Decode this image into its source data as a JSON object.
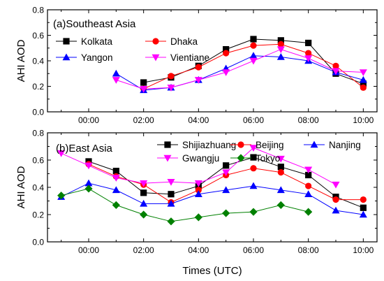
{
  "chart_data": [
    {
      "type": "line",
      "title": "(a)Southeast Asia",
      "ylabel": "AHI AOD",
      "xlabel": "",
      "ylim": [
        0.0,
        0.8
      ],
      "yticks": [
        "0.0",
        "0.2",
        "0.4",
        "0.6",
        "0.8"
      ],
      "xlim": [
        -1.5,
        10.5
      ],
      "xtick_values": [
        0,
        2,
        4,
        6,
        8,
        10
      ],
      "xtick_labels": [
        "00:00",
        "02:00",
        "04:00",
        "06:00",
        "08:00",
        "10:00"
      ],
      "legend_columns": 2,
      "legend_placement": "top-left",
      "series": [
        {
          "name": "Kolkata",
          "color": "#000000",
          "marker": "square",
          "x": [
            2,
            3,
            4,
            5,
            6,
            7,
            8,
            9,
            10
          ],
          "y": [
            0.23,
            0.27,
            0.36,
            0.49,
            0.57,
            0.56,
            0.54,
            0.3,
            0.22
          ]
        },
        {
          "name": "Dhaka",
          "color": "#ff0000",
          "marker": "circle",
          "x": [
            2,
            3,
            4,
            5,
            6,
            7,
            8,
            9,
            10
          ],
          "y": [
            0.18,
            0.28,
            0.35,
            0.46,
            0.52,
            0.53,
            0.46,
            0.36,
            0.19
          ]
        },
        {
          "name": "Yangon",
          "color": "#0000ff",
          "marker": "triangle-up",
          "x": [
            1,
            2,
            3,
            4,
            5,
            6,
            7,
            8,
            9,
            10
          ],
          "y": [
            0.3,
            0.17,
            0.19,
            0.25,
            0.34,
            0.44,
            0.43,
            0.4,
            0.31,
            0.25
          ]
        },
        {
          "name": "Vientiane",
          "color": "#ff00ff",
          "marker": "triangle-down",
          "x": [
            1,
            2,
            3,
            4,
            5,
            6,
            7,
            8,
            9,
            10
          ],
          "y": [
            0.25,
            0.18,
            0.19,
            0.25,
            0.31,
            0.4,
            0.49,
            0.42,
            0.32,
            0.31
          ]
        }
      ]
    },
    {
      "type": "line",
      "title": "(b)East Asia",
      "ylabel": "AHI AOD",
      "xlabel": "Times (UTC)",
      "ylim": [
        0.0,
        0.8
      ],
      "yticks": [
        "0.0",
        "0.2",
        "0.4",
        "0.6",
        "0.8"
      ],
      "xlim": [
        -1.5,
        10.5
      ],
      "xtick_values": [
        0,
        2,
        4,
        6,
        8,
        10
      ],
      "xtick_labels": [
        "00:00",
        "02:00",
        "04:00",
        "06:00",
        "08:00",
        "10:00"
      ],
      "legend_columns": 3,
      "legend_placement": "top-right",
      "series": [
        {
          "name": "Shijiazhuang",
          "color": "#000000",
          "marker": "square",
          "x": [
            0,
            1,
            2,
            3,
            4,
            5,
            6,
            7,
            8,
            9,
            10
          ],
          "y": [
            0.59,
            0.52,
            0.36,
            0.35,
            0.41,
            0.56,
            0.62,
            0.55,
            0.49,
            0.33,
            0.25
          ]
        },
        {
          "name": "Beijing",
          "color": "#ff0000",
          "marker": "circle",
          "x": [
            0,
            1,
            2,
            3,
            4,
            5,
            6,
            7,
            8,
            9,
            10
          ],
          "y": [
            0.57,
            0.48,
            0.42,
            0.29,
            0.38,
            0.49,
            0.54,
            0.51,
            0.41,
            0.31,
            0.31
          ]
        },
        {
          "name": "Nanjing",
          "color": "#0000ff",
          "marker": "triangle-up",
          "x": [
            -1,
            0,
            1,
            2,
            3,
            4,
            5,
            6,
            7,
            8,
            9,
            10
          ],
          "y": [
            0.33,
            0.43,
            0.38,
            0.28,
            0.28,
            0.35,
            0.38,
            0.41,
            0.38,
            0.35,
            0.23,
            0.2
          ]
        },
        {
          "name": "Gwangju",
          "color": "#ff00ff",
          "marker": "triangle-down",
          "x": [
            -1,
            0,
            1,
            2,
            3,
            4,
            5,
            6,
            7,
            8,
            9
          ],
          "y": [
            0.65,
            0.56,
            0.47,
            0.43,
            0.44,
            0.43,
            0.51,
            0.69,
            0.61,
            0.53,
            0.42
          ]
        },
        {
          "name": "Tokyo",
          "color": "#008000",
          "marker": "diamond",
          "x": [
            -1,
            0,
            1,
            2,
            3,
            4,
            5,
            6,
            7,
            8
          ],
          "y": [
            0.34,
            0.39,
            0.27,
            0.2,
            0.15,
            0.18,
            0.21,
            0.22,
            0.27,
            0.22
          ]
        }
      ]
    }
  ]
}
